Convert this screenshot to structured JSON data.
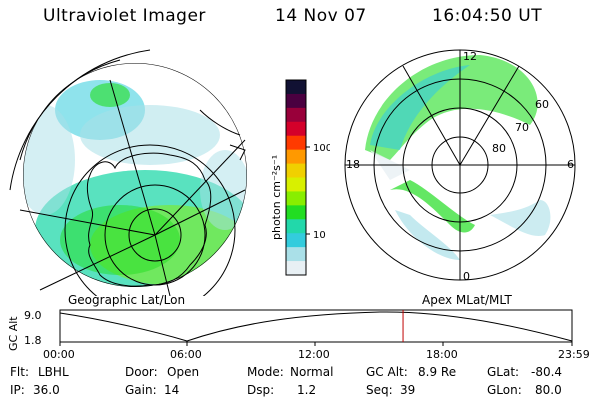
{
  "header": {
    "title": "Ultraviolet Imager",
    "date": "14 Nov 07",
    "time": "16:04:50 UT"
  },
  "panels": {
    "geographic_label": "Geographic Lat/Lon",
    "magnetic_label": "Apex MLat/MLT",
    "mlt_labels": [
      "12",
      "18",
      "6",
      "0"
    ],
    "mlat_labels": [
      "60",
      "70",
      "80"
    ]
  },
  "colorbar": {
    "unit_label": "photon cm⁻²s⁻¹",
    "ticks": [
      "100",
      "10"
    ],
    "colors": [
      "#111133",
      "#4a0040",
      "#99003a",
      "#d4002a",
      "#ff3a00",
      "#ff9900",
      "#f0d000",
      "#d8f000",
      "#88ee00",
      "#22dd22",
      "#22d8aa",
      "#33ccdd",
      "#aae0e8",
      "#e8f0f4"
    ]
  },
  "alt_strip": {
    "ylabel": "GC Alt",
    "y_ticks": [
      "9.0",
      "1.8"
    ],
    "x_ticks": [
      "00:00",
      "06:00",
      "12:00",
      "18:00",
      "23:59"
    ],
    "marker_color": "#c00000",
    "marker_fraction": 0.67
  },
  "footer": {
    "flt_label": "Flt:",
    "flt_value": "LBHL",
    "ip_label": "IP:",
    "ip_value": "36.0",
    "door_label": "Door:",
    "door_value": "Open",
    "gain_label": "Gain:",
    "gain_value": "14",
    "mode_label": "Mode:",
    "mode_value": "Normal",
    "dsp_label": "Dsp:",
    "dsp_value": "1.2",
    "gcalt_label": "GC Alt:",
    "gcalt_value": "8.9 Re",
    "seq_label": "Seq:",
    "seq_value": "39",
    "glat_label": "GLat:",
    "glat_value": "-80.4",
    "glon_label": "GLon:",
    "glon_value": "80.0"
  }
}
